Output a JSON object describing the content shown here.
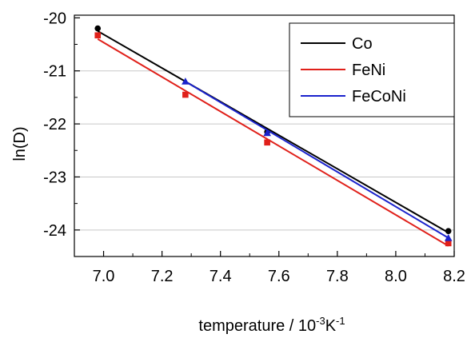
{
  "chart_data": {
    "type": "scatter",
    "title": "",
    "xlabel": {
      "prefix": "temperature / 10",
      "sup1": "-3",
      "mid": "K",
      "sup2": "-1"
    },
    "ylabel": "ln(D)",
    "xlim": [
      6.9,
      8.2
    ],
    "ylim": [
      -24.5,
      -19.95
    ],
    "xticks": [
      7.0,
      7.2,
      7.4,
      7.6,
      7.8,
      8.0,
      8.2
    ],
    "xtick_labels": [
      "7.0",
      "7.2",
      "7.4",
      "7.6",
      "7.8",
      "8.0",
      "8.2"
    ],
    "yticks": [
      -20,
      -21,
      -22,
      -23,
      -24
    ],
    "ytick_labels": [
      "-20",
      "-21",
      "-22",
      "-23",
      "-24"
    ],
    "grid": "horizontal",
    "legend_position": "top-right",
    "series": [
      {
        "name": "Co",
        "color": "#000000",
        "marker": "circle",
        "points": [
          [
            6.98,
            -20.2
          ],
          [
            7.56,
            -22.15
          ],
          [
            8.18,
            -24.02
          ]
        ],
        "fit": [
          [
            6.98,
            -20.25
          ],
          [
            8.18,
            -24.05
          ]
        ]
      },
      {
        "name": "FeNi",
        "color": "#e0201a",
        "marker": "square",
        "points": [
          [
            6.98,
            -20.33
          ],
          [
            7.28,
            -21.45
          ],
          [
            7.56,
            -22.35
          ],
          [
            8.18,
            -24.25
          ]
        ],
        "fit": [
          [
            6.98,
            -20.4
          ],
          [
            8.18,
            -24.3
          ]
        ]
      },
      {
        "name": "FeCoNi",
        "color": "#1a22cc",
        "marker": "triangle",
        "points": [
          [
            7.28,
            -21.2
          ],
          [
            7.56,
            -22.17
          ],
          [
            8.18,
            -24.15
          ]
        ],
        "fit": [
          [
            7.28,
            -21.2
          ],
          [
            8.18,
            -24.15
          ]
        ]
      }
    ]
  }
}
